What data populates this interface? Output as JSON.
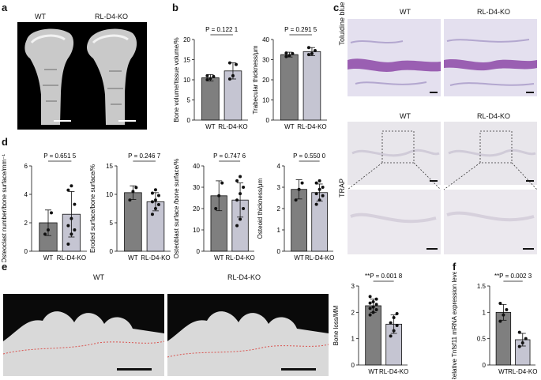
{
  "panels": {
    "a": {
      "letter": "a",
      "wt_label": "WT",
      "ko_label": "RL-D4-KO"
    },
    "b": {
      "letter": "b"
    },
    "c": {
      "letter": "c",
      "wt_label_1": "WT",
      "ko_label_1": "RL-D4-KO",
      "stain_1": "Toluidine blue",
      "wt_label_2": "WT",
      "ko_label_2": "RL-D4-KO",
      "stain_2": "TRAP"
    },
    "d": {
      "letter": "d"
    },
    "e": {
      "letter": "e",
      "wt_label": "WT",
      "ko_label": "RL-D4-KO"
    },
    "f": {
      "letter": "f"
    }
  },
  "chart_data": [
    {
      "id": "b1",
      "type": "bar",
      "categories": [
        "WT",
        "RL-D4-KO"
      ],
      "values": [
        10.5,
        12.2
      ],
      "errors": [
        0.8,
        2.0
      ],
      "points": [
        [
          10.0,
          10.3,
          10.8,
          11.0
        ],
        [
          10.2,
          11.0,
          13.8,
          14.2
        ]
      ],
      "ylabel": "Bone volume/tissue volume/%",
      "ylim": [
        0,
        20
      ],
      "yticks": [
        0,
        5,
        10,
        15,
        20
      ],
      "pvalue": "P = 0.122 1"
    },
    {
      "id": "b2",
      "type": "bar",
      "categories": [
        "WT",
        "RL-D4-KO"
      ],
      "values": [
        32.5,
        34.0
      ],
      "errors": [
        1.2,
        2.0
      ],
      "points": [
        [
          31.5,
          32.0,
          33.0,
          33.3
        ],
        [
          32.5,
          33.0,
          34.5,
          36.0
        ]
      ],
      "ylabel": "Trabecular thickness/μm",
      "ylim": [
        0,
        40
      ],
      "yticks": [
        0,
        10,
        20,
        30,
        40
      ],
      "pvalue": "P = 0.291 5"
    },
    {
      "id": "d1",
      "type": "bar",
      "categories": [
        "WT",
        "RL-D4-KO"
      ],
      "values": [
        2.0,
        2.6
      ],
      "errors": [
        0.9,
        1.6
      ],
      "points": [
        [
          1.2,
          1.5,
          2.7
        ],
        [
          0.5,
          1.2,
          1.5,
          1.8,
          2.3,
          3.3,
          4.3,
          4.6
        ]
      ],
      "ylabel": "Osteoclast number/bone surface/mm⁻¹",
      "ylim": [
        0,
        6
      ],
      "yticks": [
        0,
        2,
        4,
        6
      ],
      "pvalue": "P = 0.651 5"
    },
    {
      "id": "d2",
      "type": "bar",
      "categories": [
        "WT",
        "RL-D4-KO"
      ],
      "values": [
        10.3,
        8.7
      ],
      "errors": [
        1.2,
        1.6
      ],
      "points": [
        [
          9.0,
          10.5,
          11.2
        ],
        [
          6.5,
          7.5,
          8.2,
          8.7,
          9.0,
          9.8,
          10.2,
          10.8
        ]
      ],
      "ylabel": "Eroded surface/bone surface/%",
      "ylim": [
        0,
        15
      ],
      "yticks": [
        0,
        5,
        10,
        15
      ],
      "pvalue": "P = 0.246 7"
    },
    {
      "id": "d3",
      "type": "bar",
      "categories": [
        "WT",
        "RL-D4-KO"
      ],
      "values": [
        26,
        24
      ],
      "errors": [
        7,
        8
      ],
      "points": [
        [
          20,
          26,
          32
        ],
        [
          12,
          15,
          20,
          24,
          27,
          30,
          33,
          35
        ]
      ],
      "ylabel": "Osteoblast surface /bone surface/%",
      "ylim": [
        0,
        40
      ],
      "yticks": [
        0,
        10,
        20,
        30,
        40
      ],
      "pvalue": "P = 0.747 6"
    },
    {
      "id": "d4",
      "type": "bar",
      "categories": [
        "WT",
        "RL-D4-KO"
      ],
      "values": [
        2.9,
        2.75
      ],
      "errors": [
        0.45,
        0.4
      ],
      "points": [
        [
          2.4,
          2.9,
          3.2
        ],
        [
          2.2,
          2.4,
          2.6,
          2.7,
          2.9,
          3.0,
          3.2,
          3.3
        ]
      ],
      "ylabel": "Osteoid thickness/μm",
      "ylim": [
        0,
        4
      ],
      "yticks": [
        0,
        1,
        2,
        3,
        4
      ],
      "pvalue": "P = 0.550 0"
    },
    {
      "id": "e1",
      "type": "bar",
      "categories": [
        "WT",
        "RL-D4-KO"
      ],
      "values": [
        2.25,
        1.55
      ],
      "errors": [
        0.25,
        0.35
      ],
      "points": [
        [
          1.9,
          2.0,
          2.1,
          2.15,
          2.2,
          2.3,
          2.35,
          2.4,
          2.5,
          2.6
        ],
        [
          1.1,
          1.3,
          1.5,
          1.6,
          1.8,
          1.95
        ]
      ],
      "ylabel": "Bone loss/MM",
      "ylim": [
        0,
        3
      ],
      "yticks": [
        0,
        1,
        2,
        3
      ],
      "pvalue": "**P = 0.001 8"
    },
    {
      "id": "f1",
      "type": "bar",
      "categories": [
        "WT",
        "RL-D4-KO"
      ],
      "values": [
        1.0,
        0.48
      ],
      "errors": [
        0.15,
        0.12
      ],
      "points": [
        [
          0.83,
          0.95,
          1.05,
          1.17
        ],
        [
          0.35,
          0.42,
          0.5,
          0.62
        ]
      ],
      "ylabel": "Relative Tnfsf11 mRNA expression level",
      "ylim": [
        0,
        1.5
      ],
      "yticks": [
        0,
        0.5,
        1.0,
        1.5
      ],
      "pvalue": "**P = 0.002 3"
    }
  ],
  "colors": {
    "wt_bar": "#7f7f7f",
    "ko_bar": "#c5c5d2",
    "toluidine_bg": "#e4e0ef",
    "toluidine_dark": "#9a5fb2",
    "trap_bg": "#e8e6eb"
  }
}
